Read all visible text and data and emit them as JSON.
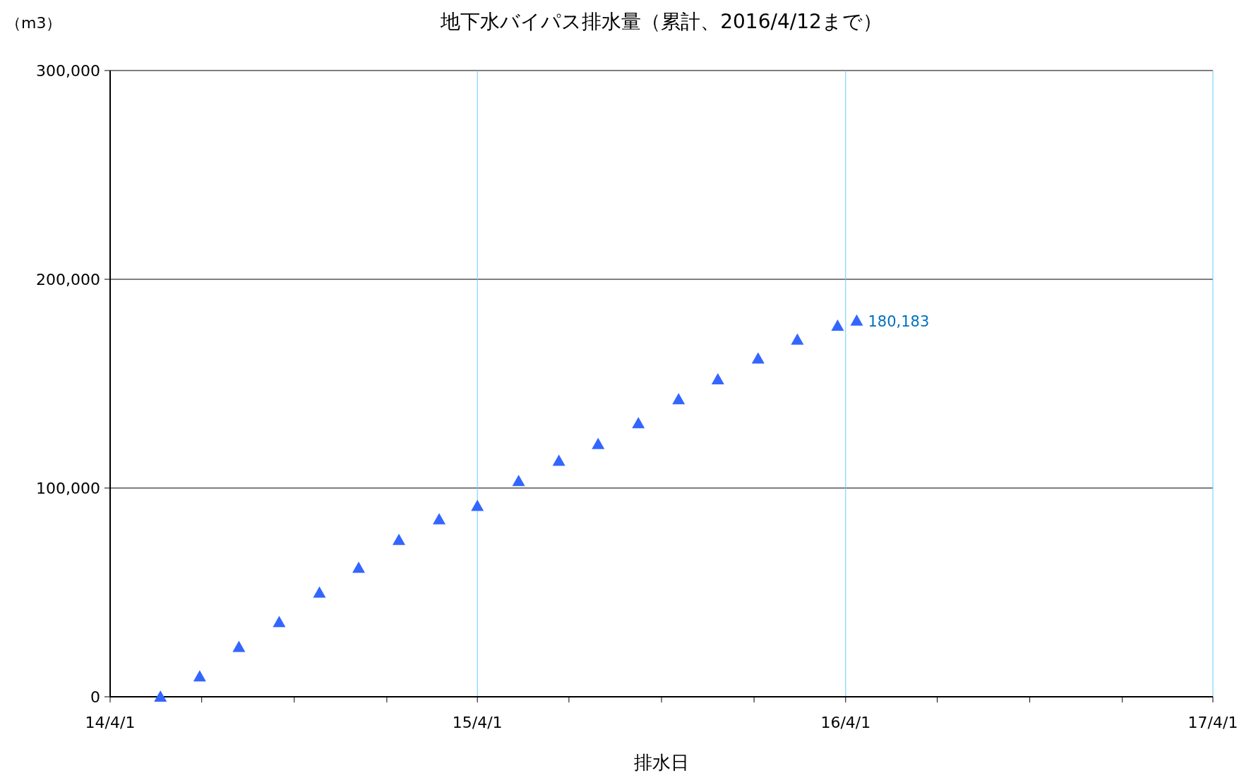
{
  "chart_data": {
    "type": "scatter",
    "title": "地下水バイパス排水量（累計、2016/4/12まで）",
    "ylabel": "（m3）",
    "xlabel": "排水日",
    "marker": "triangle",
    "grid": true,
    "x": [
      "2014-05-21",
      "2014-06-29",
      "2014-08-07",
      "2014-09-16",
      "2014-10-26",
      "2014-12-04",
      "2015-01-13",
      "2015-02-22",
      "2015-04-01",
      "2015-05-12",
      "2015-06-21",
      "2015-07-30",
      "2015-09-08",
      "2015-10-18",
      "2015-11-26",
      "2016-01-05",
      "2016-02-13",
      "2016-03-24",
      "2016-04-12"
    ],
    "series": [
      {
        "color": "#3366ff",
        "values": [
          0,
          9700,
          23800,
          35700,
          49800,
          61700,
          75100,
          85000,
          91400,
          103300,
          113000,
          121000,
          131000,
          142500,
          152000,
          162000,
          171000,
          177700,
          180183
        ],
        "value_labels": [
          null,
          null,
          null,
          null,
          null,
          null,
          null,
          null,
          null,
          null,
          null,
          null,
          null,
          null,
          null,
          null,
          null,
          null,
          "180,183"
        ]
      }
    ],
    "xlim": [
      "2014-04-01",
      "2017-04-01"
    ],
    "xticks": [
      {
        "value": "2014-04-01",
        "label": "14/4/1"
      },
      {
        "value": "2014-07-01",
        "label": null
      },
      {
        "value": "2014-10-01",
        "label": null
      },
      {
        "value": "2015-01-01",
        "label": null
      },
      {
        "value": "2015-04-01",
        "label": "15/4/1"
      },
      {
        "value": "2015-07-01",
        "label": null
      },
      {
        "value": "2015-10-01",
        "label": null
      },
      {
        "value": "2016-01-01",
        "label": null
      },
      {
        "value": "2016-04-01",
        "label": "16/4/1"
      },
      {
        "value": "2016-07-01",
        "label": null
      },
      {
        "value": "2016-10-01",
        "label": null
      },
      {
        "value": "2017-01-01",
        "label": null
      },
      {
        "value": "2017-04-01",
        "label": "17/4/1"
      }
    ],
    "ylim": [
      0,
      300000
    ],
    "yticks": [
      {
        "value": 0,
        "label": "0"
      },
      {
        "value": 100000,
        "label": "100,000"
      },
      {
        "value": 200000,
        "label": "200,000"
      },
      {
        "value": 300000,
        "label": "300,000"
      }
    ]
  }
}
